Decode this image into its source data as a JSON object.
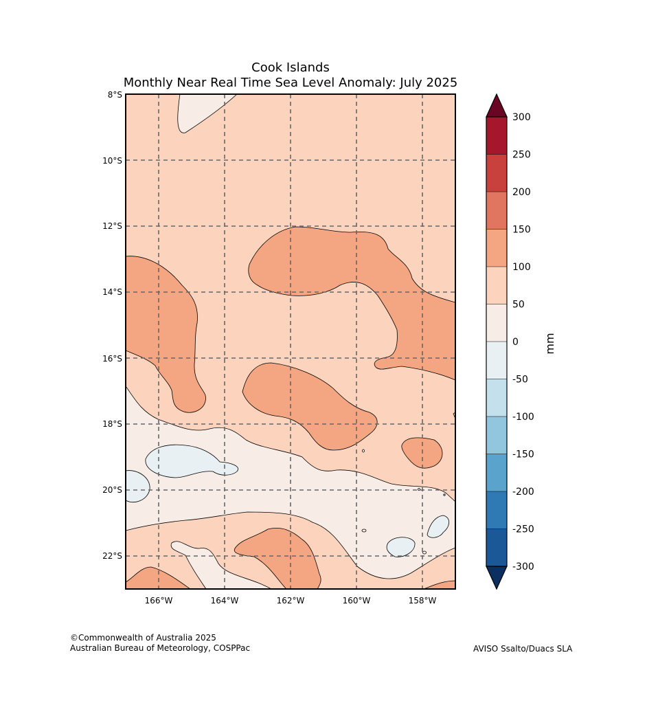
{
  "title": {
    "line1": "Cook Islands",
    "line2": "Monthly Near Real Time Sea Level Anomaly: July 2025"
  },
  "map": {
    "lon_ticks": [
      "166°W",
      "164°W",
      "162°W",
      "160°W",
      "158°W"
    ],
    "lat_ticks": [
      "8°S",
      "10°S",
      "12°S",
      "14°S",
      "16°S",
      "18°S",
      "20°S",
      "22°S"
    ],
    "lon_range_deg_w": [
      167,
      157
    ],
    "lat_range_deg_s": [
      8,
      23
    ]
  },
  "colorbar": {
    "unit_label": "mm",
    "levels": [
      "300",
      "250",
      "200",
      "150",
      "100",
      "50",
      "0",
      "-50",
      "-100",
      "-150",
      "-200",
      "-250",
      "-300"
    ],
    "colors": [
      "#6a0624",
      "#a6172e",
      "#c8413c",
      "#e07660",
      "#f4a683",
      "#fcd3bc",
      "#f8ece6",
      "#e8f0f4",
      "#c5e0ed",
      "#92c6df",
      "#5aa3cd",
      "#2f79b5",
      "#1a5898",
      "#0b305f"
    ]
  },
  "credits": {
    "copyright": "©Commonwealth of Australia 2025",
    "agency": "Australian Bureau of Meteorology, COSPPac",
    "source": "AVISO Ssalto/Duacs SLA"
  }
}
